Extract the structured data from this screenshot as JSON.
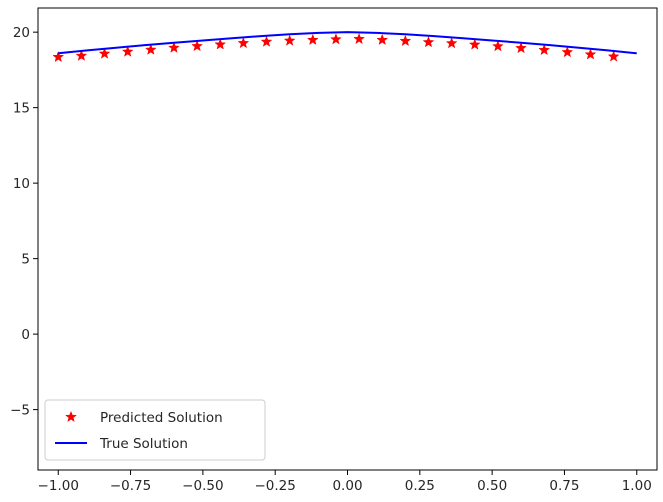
{
  "chart_data": {
    "type": "line",
    "title": "",
    "xlabel": "",
    "ylabel": "",
    "xlim": [
      -1.07,
      1.07
    ],
    "ylim": [
      -9,
      21.6
    ],
    "xticks": [
      -1.0,
      -0.75,
      -0.5,
      -0.25,
      0.0,
      0.25,
      0.5,
      0.75,
      1.0
    ],
    "xtick_labels": [
      "−1.00",
      "−0.75",
      "−0.50",
      "−0.25",
      "0.00",
      "0.25",
      "0.50",
      "0.75",
      "1.00"
    ],
    "yticks": [
      -5,
      0,
      5,
      10,
      15,
      20
    ],
    "ytick_labels": [
      "−5",
      "0",
      "5",
      "10",
      "15",
      "20"
    ],
    "grid": false,
    "legend_position": "lower-left",
    "series": [
      {
        "name": "Predicted Solution",
        "kind": "scatter",
        "marker": "star",
        "color": "#ff0000",
        "x": [
          -1.0,
          -0.92,
          -0.84,
          -0.76,
          -0.68,
          -0.6,
          -0.52,
          -0.44,
          -0.36,
          -0.28,
          -0.2,
          -0.12,
          -0.04,
          0.04,
          0.12,
          0.2,
          0.28,
          0.36,
          0.44,
          0.52,
          0.6,
          0.68,
          0.76,
          0.84,
          0.92
        ],
        "y": [
          18.35,
          18.43,
          18.57,
          18.7,
          18.83,
          18.96,
          19.07,
          19.18,
          19.27,
          19.36,
          19.43,
          19.48,
          19.52,
          19.54,
          19.48,
          19.41,
          19.33,
          19.26,
          19.17,
          19.06,
          18.94,
          18.81,
          18.67,
          18.52,
          18.38
        ]
      },
      {
        "name": "True Solution",
        "kind": "line",
        "color": "#0000ff",
        "x": [
          -1.0,
          -0.9,
          -0.8,
          -0.7,
          -0.6,
          -0.5,
          -0.4,
          -0.3,
          -0.2,
          -0.1,
          0.0,
          0.1,
          0.2,
          0.3,
          0.4,
          0.5,
          0.6,
          0.7,
          0.8,
          0.9,
          1.0
        ],
        "y": [
          18.6,
          18.79,
          18.97,
          19.14,
          19.3,
          19.45,
          19.6,
          19.74,
          19.86,
          19.95,
          20.0,
          19.95,
          19.86,
          19.74,
          19.6,
          19.45,
          19.3,
          19.14,
          18.97,
          18.79,
          18.6
        ]
      }
    ]
  }
}
